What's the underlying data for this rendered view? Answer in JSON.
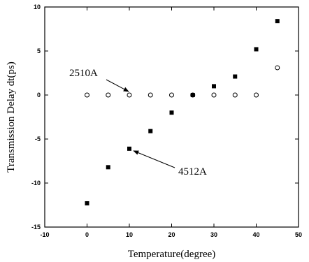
{
  "chart_data": {
    "type": "scatter",
    "title": "",
    "xlabel": "Temperature(degree)",
    "ylabel": "Transmission Delay dt(ps)",
    "xlim": [
      -10,
      50
    ],
    "ylim": [
      -15,
      10
    ],
    "xticks": [
      -10,
      0,
      10,
      20,
      30,
      40,
      50
    ],
    "yticks": [
      -15,
      -10,
      -5,
      0,
      5,
      10
    ],
    "grid": false,
    "series": [
      {
        "name": "2510A",
        "marker": "open-circle",
        "color": "#000000",
        "x": [
          0,
          5,
          10,
          15,
          20,
          25,
          30,
          35,
          40,
          45
        ],
        "y": [
          0,
          0,
          0,
          0,
          0,
          0,
          0,
          0,
          0,
          3.1
        ]
      },
      {
        "name": "4512A",
        "marker": "filled-square",
        "color": "#000000",
        "x": [
          0,
          5,
          10,
          15,
          20,
          25,
          30,
          35,
          40,
          45
        ],
        "y": [
          -12.3,
          -8.2,
          -6.1,
          -4.1,
          -2.0,
          0,
          1.0,
          2.1,
          5.2,
          8.4
        ]
      }
    ],
    "annotations": [
      {
        "text": "2510A",
        "target_series": 0,
        "target_index": 2
      },
      {
        "text": "4512A",
        "target_series": 1,
        "target_index": 2
      }
    ]
  }
}
